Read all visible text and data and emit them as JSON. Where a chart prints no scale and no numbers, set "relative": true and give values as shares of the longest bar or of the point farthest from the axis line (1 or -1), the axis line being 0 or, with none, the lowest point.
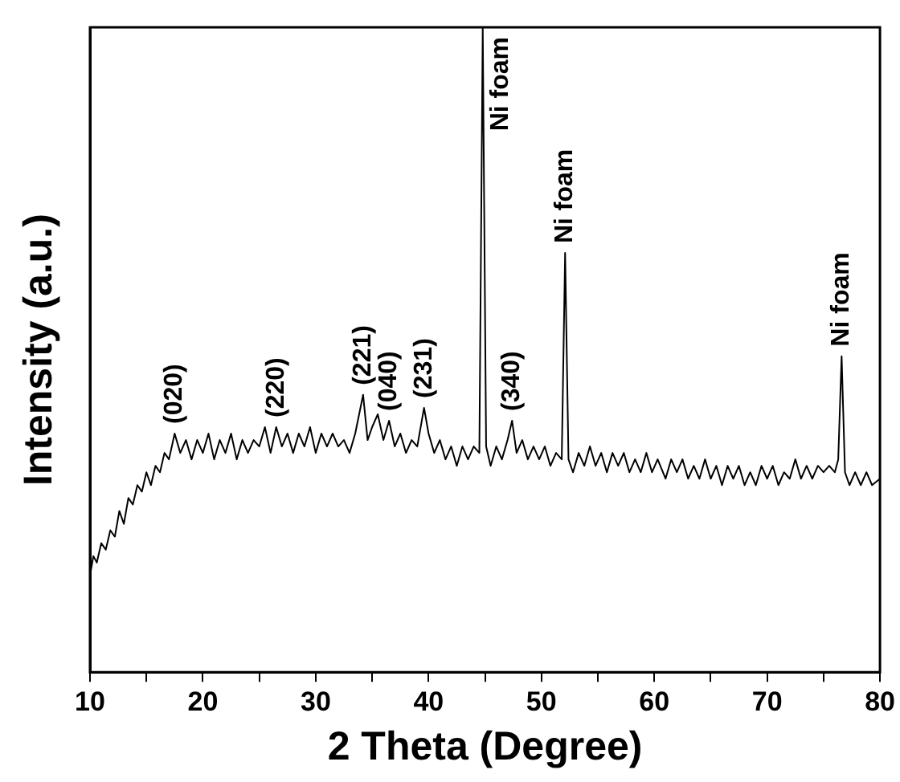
{
  "chart_data": {
    "type": "line",
    "relative": true,
    "xlabel": "2 Theta (Degree)",
    "ylabel": "Intensity (a.u.)",
    "xlim": [
      10,
      80
    ],
    "xticks": [
      10,
      {
        "value": 15,
        "label": null
      },
      20,
      {
        "value": 25,
        "label": null
      },
      30,
      {
        "value": 35,
        "label": null
      },
      40,
      {
        "value": 45,
        "label": null
      },
      50,
      {
        "value": 55,
        "label": null
      },
      60,
      {
        "value": 65,
        "label": null
      },
      70,
      {
        "value": 75,
        "label": null
      },
      80
    ],
    "grid": false,
    "legend": false,
    "marker": "none",
    "line_style": "solid",
    "series": [
      {
        "color": "#000000",
        "x": [
          10,
          10.3,
          10.6,
          11,
          11.4,
          11.8,
          12.2,
          12.6,
          13,
          13.4,
          13.8,
          14.2,
          14.6,
          15,
          15.4,
          15.8,
          16.2,
          16.6,
          17,
          17.5,
          18,
          18.5,
          19,
          19.5,
          20,
          20.5,
          21,
          21.5,
          22,
          22.5,
          23,
          23.5,
          24,
          24.5,
          25,
          25.5,
          26,
          26.5,
          27,
          27.5,
          28,
          28.5,
          29,
          29.5,
          30,
          30.5,
          31,
          31.5,
          32,
          32.5,
          33,
          33.5,
          34.2,
          34.6,
          35,
          35.5,
          36,
          36.5,
          37,
          37.5,
          38,
          38.5,
          39,
          39.6,
          40,
          40.5,
          41,
          41.5,
          42,
          42.5,
          43,
          43.5,
          44,
          44.5,
          44.8,
          45.1,
          45.5,
          46,
          46.5,
          47,
          47.4,
          47.8,
          48.3,
          48.8,
          49.3,
          49.8,
          50.3,
          50.8,
          51.3,
          51.8,
          52.1,
          52.4,
          52.8,
          53.3,
          53.8,
          54.3,
          54.8,
          55.3,
          55.8,
          56.3,
          56.8,
          57.3,
          57.8,
          58.3,
          58.8,
          59.3,
          59.8,
          60.3,
          61,
          61.5,
          62,
          62.5,
          63,
          63.5,
          64,
          64.5,
          65,
          65.5,
          66,
          66.5,
          67,
          67.5,
          68,
          68.5,
          69,
          69.5,
          70,
          70.5,
          71,
          71.5,
          72,
          72.5,
          73,
          73.5,
          74,
          74.5,
          75,
          75.5,
          76,
          76.3,
          76.6,
          76.9,
          77.3,
          77.8,
          78.3,
          78.8,
          79.3,
          80
        ],
        "values": [
          0.15,
          0.18,
          0.17,
          0.2,
          0.19,
          0.22,
          0.21,
          0.25,
          0.23,
          0.27,
          0.26,
          0.29,
          0.28,
          0.31,
          0.29,
          0.32,
          0.31,
          0.34,
          0.33,
          0.37,
          0.34,
          0.36,
          0.33,
          0.36,
          0.34,
          0.37,
          0.33,
          0.36,
          0.34,
          0.37,
          0.33,
          0.36,
          0.34,
          0.36,
          0.35,
          0.38,
          0.34,
          0.38,
          0.35,
          0.37,
          0.34,
          0.37,
          0.35,
          0.38,
          0.34,
          0.37,
          0.35,
          0.37,
          0.35,
          0.36,
          0.34,
          0.37,
          0.43,
          0.36,
          0.38,
          0.4,
          0.36,
          0.39,
          0.35,
          0.37,
          0.34,
          0.36,
          0.35,
          0.41,
          0.37,
          0.34,
          0.36,
          0.33,
          0.35,
          0.32,
          0.35,
          0.33,
          0.35,
          0.34,
          1.0,
          0.35,
          0.32,
          0.35,
          0.33,
          0.36,
          0.39,
          0.34,
          0.36,
          0.33,
          0.35,
          0.33,
          0.35,
          0.32,
          0.34,
          0.33,
          0.65,
          0.33,
          0.31,
          0.34,
          0.32,
          0.35,
          0.32,
          0.34,
          0.31,
          0.34,
          0.32,
          0.34,
          0.31,
          0.33,
          0.31,
          0.34,
          0.31,
          0.33,
          0.3,
          0.33,
          0.31,
          0.33,
          0.3,
          0.32,
          0.3,
          0.33,
          0.3,
          0.32,
          0.29,
          0.32,
          0.3,
          0.32,
          0.29,
          0.31,
          0.29,
          0.32,
          0.3,
          0.32,
          0.29,
          0.31,
          0.3,
          0.33,
          0.3,
          0.32,
          0.3,
          0.32,
          0.31,
          0.32,
          0.31,
          0.33,
          0.49,
          0.31,
          0.29,
          0.31,
          0.29,
          0.31,
          0.29,
          0.3
        ]
      }
    ],
    "annotations": [
      {
        "text": "(020)",
        "x": 17.5,
        "y": 0.37
      },
      {
        "text": "(220)",
        "x": 26.5,
        "y": 0.38
      },
      {
        "text": "(221)",
        "x": 34.2,
        "y": 0.43
      },
      {
        "text": "(040)",
        "x": 36.5,
        "y": 0.39
      },
      {
        "text": "(231)",
        "x": 39.6,
        "y": 0.41
      },
      {
        "text": "Ni foam",
        "x": 44.8,
        "y": 1.0
      },
      {
        "text": "(340)",
        "x": 47.4,
        "y": 0.39
      },
      {
        "text": "Ni foam",
        "x": 52.1,
        "y": 0.65
      },
      {
        "text": "Ni foam",
        "x": 76.6,
        "y": 0.49
      }
    ]
  }
}
